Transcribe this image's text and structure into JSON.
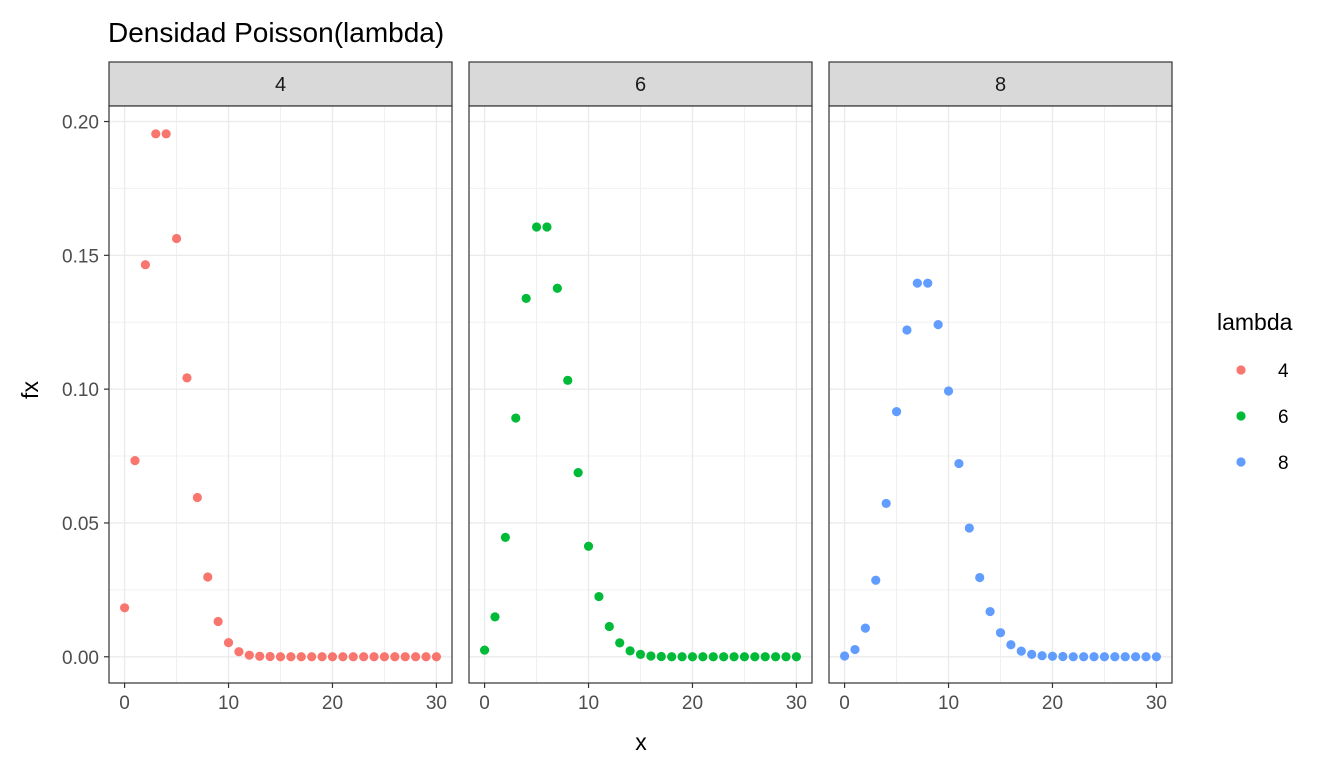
{
  "chart_data": {
    "type": "scatter",
    "title": "Densidad Poisson(lambda)",
    "xlabel": "x",
    "ylabel": "fx",
    "xlim": [
      -1.5,
      31.5
    ],
    "ylim": [
      -0.0098,
      0.2058
    ],
    "x_ticks": [
      0,
      10,
      20,
      30
    ],
    "x_tick_labels": [
      "0",
      "10",
      "20",
      "30"
    ],
    "y_ticks": [
      0,
      0.05,
      0.1,
      0.15,
      0.2
    ],
    "y_tick_labels": [
      "0.00",
      "0.05",
      "0.10",
      "0.15",
      "0.20"
    ],
    "grid": true,
    "facet_by": "lambda",
    "legend": {
      "title": "lambda",
      "position": "right"
    },
    "x": [
      0,
      1,
      2,
      3,
      4,
      5,
      6,
      7,
      8,
      9,
      10,
      11,
      12,
      13,
      14,
      15,
      16,
      17,
      18,
      19,
      20,
      21,
      22,
      23,
      24,
      25,
      26,
      27,
      28,
      29,
      30
    ],
    "series": [
      {
        "name": "4",
        "color": "#F8766D",
        "values": [
          0.0183,
          0.0733,
          0.1465,
          0.1954,
          0.1954,
          0.1563,
          0.1042,
          0.0595,
          0.0298,
          0.0132,
          0.0053,
          0.0019,
          0.0006,
          0.0002,
          0.0001,
          0,
          0,
          0,
          0,
          0,
          0,
          0,
          0,
          0,
          0,
          0,
          0,
          0,
          0,
          0,
          0
        ]
      },
      {
        "name": "6",
        "color": "#00BA38",
        "values": [
          0.0025,
          0.0149,
          0.0446,
          0.0892,
          0.1339,
          0.1606,
          0.1606,
          0.1377,
          0.1033,
          0.0688,
          0.0413,
          0.0225,
          0.0113,
          0.0052,
          0.0022,
          0.0009,
          0.0003,
          0.0001,
          0,
          0,
          0,
          0,
          0,
          0,
          0,
          0,
          0,
          0,
          0,
          0,
          0
        ]
      },
      {
        "name": "8",
        "color": "#619CFF",
        "values": [
          0.0003,
          0.0027,
          0.0107,
          0.0286,
          0.0573,
          0.0916,
          0.1221,
          0.1396,
          0.1396,
          0.1241,
          0.0993,
          0.0722,
          0.0481,
          0.0296,
          0.0169,
          0.009,
          0.0045,
          0.0021,
          0.0009,
          0.0004,
          0.0002,
          0.0001,
          0,
          0,
          0,
          0,
          0,
          0,
          0,
          0,
          0
        ]
      }
    ]
  }
}
